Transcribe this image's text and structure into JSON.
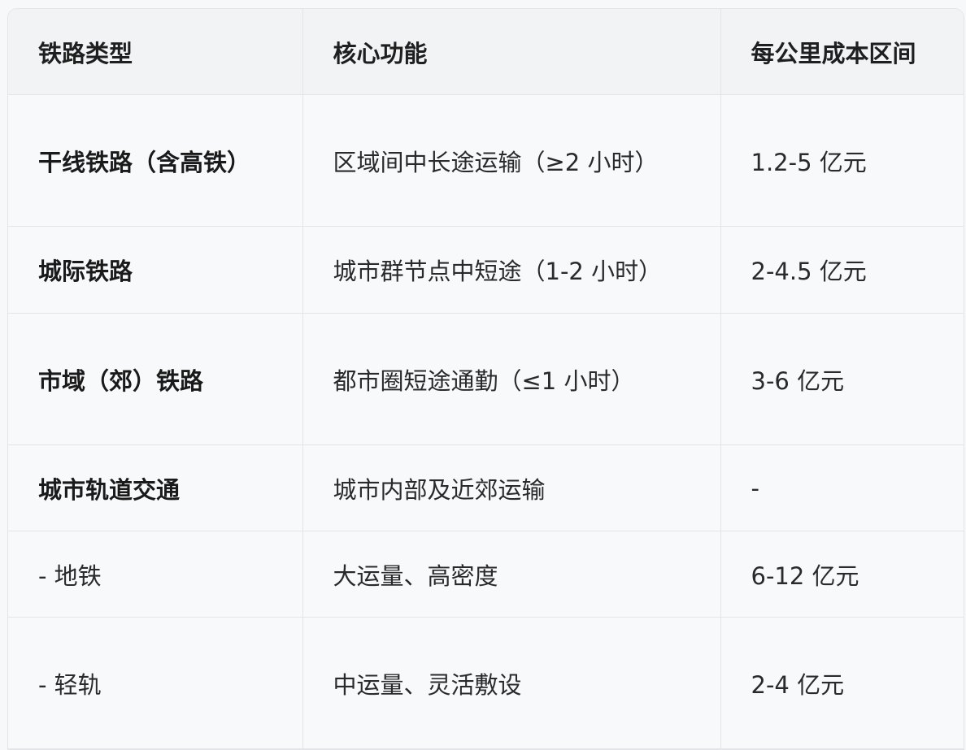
{
  "table": {
    "headers": [
      "铁路类型",
      "核心功能",
      "每公里成本区间"
    ],
    "rows": [
      {
        "type": "干线铁路（含高铁）",
        "function": "区域间中长途运输（≥2 小时）",
        "cost": "1.2-5 亿元",
        "bold": true
      },
      {
        "type": "城际铁路",
        "function": "城市群节点中短途（1-2 小时）",
        "cost": "2-4.5 亿元",
        "bold": true
      },
      {
        "type": "市域（郊）铁路",
        "function": "都市圈短途通勤（≤1 小时）",
        "cost": "3-6 亿元",
        "bold": true
      },
      {
        "type": "城市轨道交通",
        "function": "城市内部及近郊运输",
        "cost": "-",
        "bold": true
      },
      {
        "type": "- 地铁",
        "function": "大运量、高密度",
        "cost": "6-12 亿元",
        "bold": false
      },
      {
        "type": "- 轻轨",
        "function": "中运量、灵活敷设",
        "cost": "2-4 亿元",
        "bold": false
      }
    ]
  }
}
